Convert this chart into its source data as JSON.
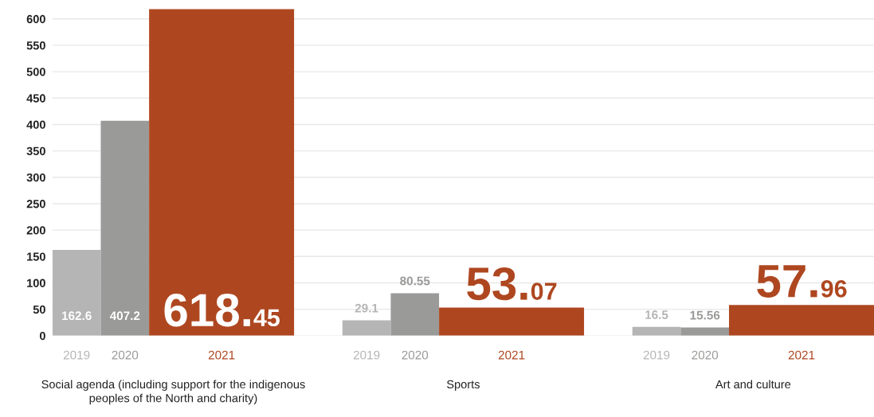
{
  "chart_data": {
    "type": "bar",
    "categories": [
      "Social agenda (including support for the indigenous\npeoples of the North and charity)",
      "Sports",
      "Art and culture"
    ],
    "series": [
      {
        "name": "2019",
        "color": "#b5b5b5",
        "values": [
          162.6,
          29.1,
          16.5
        ]
      },
      {
        "name": "2020",
        "color": "#9a9a99",
        "values": [
          407.2,
          80.55,
          15.56
        ]
      },
      {
        "name": "2021",
        "color": "#ae4720",
        "values": [
          618.45,
          53.07,
          57.96
        ]
      }
    ],
    "ylim": [
      0,
      620
    ],
    "yticks": [
      0,
      50,
      100,
      150,
      200,
      250,
      300,
      350,
      400,
      450,
      500,
      550,
      600
    ],
    "grid": "y",
    "data_labels": true
  }
}
